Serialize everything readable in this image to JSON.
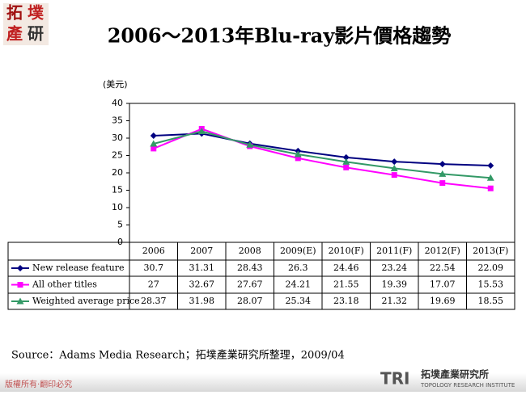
{
  "logo": [
    "拓",
    "墣",
    "產",
    "研"
  ],
  "chart_data": {
    "type": "line",
    "title": "2006～2013年Blu-ray影片價格趨勢",
    "y_label": "(美元)",
    "categories": [
      "2006",
      "2007",
      "2008",
      "2009(E)",
      "2010(F)",
      "2011(F)",
      "2012(F)",
      "2013(F)"
    ],
    "series": [
      {
        "name": "New release feature",
        "color": "#000080",
        "marker": "diamond",
        "values": [
          30.7,
          31.31,
          28.43,
          26.3,
          24.46,
          23.24,
          22.54,
          22.09
        ]
      },
      {
        "name": "All other titles",
        "color": "#ff00ff",
        "marker": "square",
        "values": [
          27,
          32.67,
          27.67,
          24.21,
          21.55,
          19.39,
          17.07,
          15.53
        ]
      },
      {
        "name": "Weighted average price",
        "color": "#339966",
        "marker": "triangle",
        "values": [
          28.37,
          31.98,
          28.07,
          25.34,
          23.18,
          21.32,
          19.69,
          18.55
        ]
      }
    ],
    "ylim": [
      0,
      40
    ],
    "yticks": [
      0,
      5,
      10,
      15,
      20,
      25,
      30,
      35,
      40
    ],
    "grid": false,
    "source": "Source：Adams Media Research；拓墣產業研究所整理，2009/04"
  },
  "footer": {
    "copyright": "版權所有‧翻印必究",
    "brand": "TRI",
    "institute": "拓墣產業研究所",
    "institute_en": "TOPOLOGY RESEARCH INSTITUTE"
  }
}
